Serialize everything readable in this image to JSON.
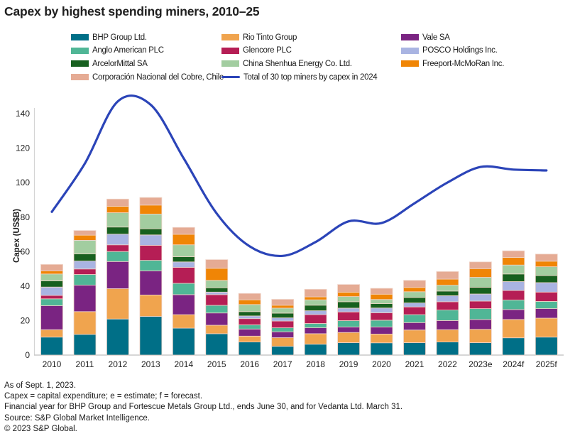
{
  "title": "Capex by highest spending miners, 2010–25",
  "y_axis": {
    "label": "Capex (US$B)",
    "ticks": [
      0,
      20,
      40,
      60,
      80,
      100,
      120,
      140
    ]
  },
  "footnotes": [
    "As of Sept. 1, 2023.",
    "Capex = capital expenditure; e = estimate; f = forecast.",
    "Financial year for BHP Group and Fortescue Metals Group Ltd., ends June 30, and for Vedanta Ltd. March 31.",
    "Source: S&P Global Market Intelligence.",
    "© 2023 S&P Global."
  ],
  "chart_data": {
    "type": "bar",
    "subtype": "stacked-bar-with-line",
    "title": "Capex by highest spending miners, 2010–25",
    "xlabel": "",
    "ylabel": "Capex (US$B)",
    "ylim": [
      0,
      150
    ],
    "grid": false,
    "legend_position": "top",
    "categories": [
      "2010",
      "2011",
      "2012",
      "2013",
      "2014",
      "2015",
      "2016",
      "2017",
      "2018",
      "2019",
      "2020",
      "2021",
      "2022",
      "2023e",
      "2024f",
      "2025f"
    ],
    "series": [
      {
        "name": "BHP Group Ltd.",
        "color": "#006f87",
        "values": [
          10.4,
          12.0,
          20.9,
          22.4,
          15.6,
          12.4,
          7.6,
          5.1,
          6.3,
          7.2,
          7.1,
          7.2,
          7.6,
          7.2,
          10.0,
          10.4
        ]
      },
      {
        "name": "Rio Tinto Group",
        "color": "#f0a44e",
        "values": [
          4.3,
          13.2,
          17.6,
          12.4,
          7.8,
          4.9,
          3.4,
          5.0,
          6.1,
          5.9,
          5.1,
          7.3,
          7.1,
          7.7,
          10.6,
          11.0
        ]
      },
      {
        "name": "Vale SA",
        "color": "#7a2482",
        "values": [
          13.9,
          15.3,
          15.7,
          14.0,
          11.6,
          7.1,
          4.1,
          3.4,
          3.4,
          3.2,
          4.1,
          4.3,
          5.3,
          5.7,
          5.8,
          5.5
        ]
      },
      {
        "name": "Anglo American PLC",
        "color": "#50b696",
        "values": [
          4.0,
          6.2,
          5.8,
          6.1,
          6.6,
          4.4,
          2.4,
          2.3,
          2.5,
          3.7,
          3.9,
          4.6,
          6.1,
          6.3,
          5.5,
          4.2
        ]
      },
      {
        "name": "Glencore PLC",
        "color": "#b51e55",
        "values": [
          2.0,
          3.2,
          3.9,
          8.7,
          9.2,
          6.2,
          3.6,
          3.9,
          5.1,
          5.0,
          4.3,
          4.5,
          4.8,
          4.4,
          5.5,
          5.4
        ]
      },
      {
        "name": "POSCO Holdings Inc.",
        "color": "#a9b4e2",
        "values": [
          4.8,
          4.6,
          6.2,
          6.0,
          3.2,
          1.5,
          1.6,
          1.9,
          2.3,
          2.2,
          2.8,
          2.3,
          3.5,
          4.1,
          5.2,
          5.5
        ]
      },
      {
        "name": "ArcelorMittal SA",
        "color": "#17601f",
        "values": [
          3.6,
          4.1,
          4.1,
          3.6,
          3.0,
          2.5,
          2.5,
          2.7,
          3.2,
          3.7,
          2.5,
          3.2,
          2.7,
          3.9,
          4.4,
          4.1
        ]
      },
      {
        "name": "China Shenhua Energy Co. Ltd.",
        "color": "#a2cda0",
        "values": [
          4.0,
          7.9,
          8.3,
          8.5,
          6.9,
          4.3,
          4.1,
          2.9,
          3.1,
          3.0,
          2.4,
          3.3,
          3.4,
          5.8,
          5.2,
          5.1
        ]
      },
      {
        "name": "Freeport-McMoRan Inc.",
        "color": "#f08505",
        "values": [
          1.8,
          3.0,
          3.7,
          5.2,
          6.1,
          7.0,
          2.7,
          1.7,
          1.7,
          2.5,
          3.1,
          2.5,
          3.5,
          5.0,
          4.4,
          3.2
        ]
      },
      {
        "name": "Corporación Nacional del Cobre, Chile",
        "color": "#e5ab94",
        "values": [
          3.7,
          2.7,
          4.2,
          4.4,
          4.0,
          5.0,
          3.7,
          3.4,
          4.4,
          4.5,
          3.4,
          4.1,
          4.4,
          3.9,
          3.8,
          4.1
        ]
      }
    ],
    "line_series": {
      "name": "Total of 30 top miners by capex in 2024",
      "color": "#2b44b8",
      "values": [
        83,
        111,
        147,
        145,
        114,
        82,
        63,
        57.5,
        65.5,
        77.5,
        76.5,
        88,
        100,
        109,
        107.5,
        107
      ]
    }
  }
}
